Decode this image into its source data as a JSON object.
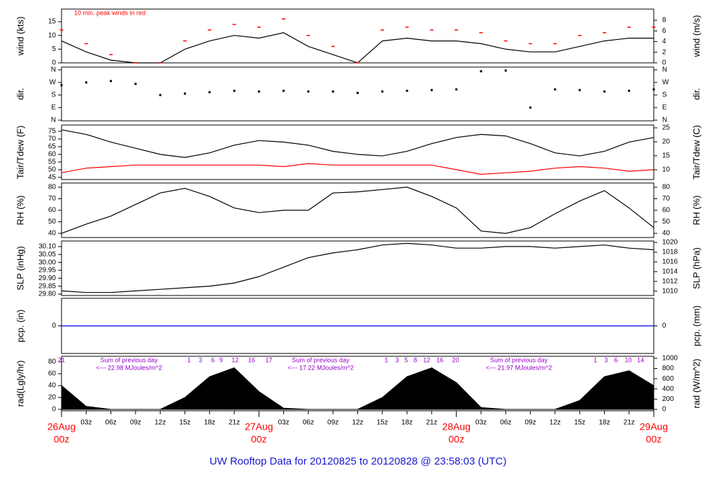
{
  "page_title": "UW Rooftop Data for 20120825  to  20120828 @ 23:58:03  (UTC)",
  "x_axis": {
    "xlim": [
      0,
      72
    ],
    "xticks": [
      {
        "value": 3,
        "label": "03z"
      },
      {
        "value": 6,
        "label": "06z"
      },
      {
        "value": 9,
        "label": "09z"
      },
      {
        "value": 12,
        "label": "12z"
      },
      {
        "value": 15,
        "label": "15z"
      },
      {
        "value": 18,
        "label": "18z"
      },
      {
        "value": 21,
        "label": "21z"
      },
      {
        "value": 27,
        "label": "03z"
      },
      {
        "value": 30,
        "label": "06z"
      },
      {
        "value": 33,
        "label": "09z"
      },
      {
        "value": 36,
        "label": "12z"
      },
      {
        "value": 39,
        "label": "15z"
      },
      {
        "value": 42,
        "label": "18z"
      },
      {
        "value": 45,
        "label": "21z"
      },
      {
        "value": 51,
        "label": "03z"
      },
      {
        "value": 54,
        "label": "06z"
      },
      {
        "value": 57,
        "label": "09z"
      },
      {
        "value": 60,
        "label": "12z"
      },
      {
        "value": 63,
        "label": "15z"
      },
      {
        "value": 66,
        "label": "18z"
      },
      {
        "value": 69,
        "label": "21z"
      }
    ],
    "major_ticks": [
      {
        "value": 0,
        "label": "26Aug",
        "sublabel": "00z"
      },
      {
        "value": 24,
        "label": "27Aug",
        "sublabel": "00z"
      },
      {
        "value": 48,
        "label": "28Aug",
        "sublabel": "00z"
      },
      {
        "value": 72,
        "label": "29Aug",
        "sublabel": "00z"
      }
    ],
    "major_color": "#ff0000"
  },
  "chart_data": [
    {
      "type": "line",
      "ylabel": "wind (kts)",
      "y2label": "wind (m/s)",
      "annotation": "10 min. peak winds in red",
      "annotation_color": "#ff0000",
      "ylim": [
        0,
        19.6
      ],
      "yticks": [
        0,
        5,
        10,
        15
      ],
      "y2lim": [
        0,
        10.1
      ],
      "y2ticks": [
        0,
        2,
        4,
        6,
        8
      ],
      "x": [
        0,
        3,
        6,
        9,
        12,
        15,
        18,
        21,
        24,
        27,
        30,
        33,
        36,
        39,
        42,
        45,
        48,
        51,
        54,
        57,
        60,
        63,
        66,
        69,
        72
      ],
      "series": [
        {
          "name": "wind",
          "color": "#000000",
          "mode": "line",
          "values": [
            8,
            4,
            1,
            0,
            0,
            5,
            8,
            10,
            9,
            11,
            6,
            3,
            0,
            8,
            9,
            8,
            8,
            7,
            5,
            4,
            4,
            6,
            8,
            9,
            9
          ]
        },
        {
          "name": "peak",
          "color": "#ff0000",
          "mode": "markers",
          "values": [
            12,
            7,
            3,
            0,
            0,
            8,
            12,
            14,
            13,
            16,
            10,
            6,
            0,
            12,
            13,
            12,
            12,
            11,
            8,
            7,
            7,
            10,
            11,
            13,
            13
          ]
        }
      ]
    },
    {
      "type": "scatter",
      "ylabel": "dir.",
      "y2label": "dir.",
      "ylim": [
        -5,
        380
      ],
      "yticks": [
        {
          "value": 0,
          "label": "N"
        },
        {
          "value": 90,
          "label": "E"
        },
        {
          "value": 180,
          "label": "S"
        },
        {
          "value": 270,
          "label": "W"
        },
        {
          "value": 360,
          "label": "N"
        }
      ],
      "y2lim": [
        -5,
        380
      ],
      "y2ticks": [
        {
          "value": 0,
          "label": "N"
        },
        {
          "value": 90,
          "label": "E"
        },
        {
          "value": 180,
          "label": "S"
        },
        {
          "value": 270,
          "label": "W"
        },
        {
          "value": 360,
          "label": "N"
        }
      ],
      "x": [
        0,
        3,
        6,
        9,
        12,
        15,
        18,
        21,
        24,
        27,
        30,
        33,
        36,
        39,
        42,
        45,
        48,
        51,
        54,
        57,
        60,
        63,
        66,
        69,
        72
      ],
      "series": [
        {
          "name": "dir",
          "color": "#000000",
          "values": [
            250,
            270,
            280,
            260,
            180,
            190,
            200,
            210,
            205,
            210,
            205,
            205,
            195,
            205,
            210,
            215,
            220,
            350,
            355,
            90,
            220,
            215,
            205,
            210,
            220
          ]
        }
      ]
    },
    {
      "type": "line",
      "ylabel": "Tair/Tdew (F)",
      "y2label": "Tair/Tdew (C)",
      "ylim": [
        43.6,
        79.1
      ],
      "yticks": [
        45,
        50,
        55,
        60,
        65,
        70,
        75
      ],
      "y2lim": [
        6.5,
        26
      ],
      "y2ticks": [
        10,
        15,
        20,
        25
      ],
      "x": [
        0,
        3,
        6,
        9,
        12,
        15,
        18,
        21,
        24,
        27,
        30,
        33,
        36,
        39,
        42,
        45,
        48,
        51,
        54,
        57,
        60,
        63,
        66,
        69,
        72
      ],
      "series": [
        {
          "name": "Tair",
          "color": "#000000",
          "mode": "line",
          "values": [
            76,
            73,
            68,
            64,
            60,
            58,
            61,
            66,
            69,
            68,
            66,
            62,
            60,
            59,
            62,
            67,
            71,
            73,
            72,
            67,
            61,
            59,
            62,
            68,
            71
          ]
        },
        {
          "name": "Tdew",
          "color": "#ff0000",
          "mode": "line",
          "values": [
            48,
            51,
            52,
            53,
            53,
            53,
            53,
            53,
            53,
            52,
            54,
            53,
            53,
            53,
            53,
            53,
            50,
            47,
            48,
            49,
            51,
            52,
            51,
            49,
            50
          ]
        }
      ]
    },
    {
      "type": "line",
      "ylabel": "RH (%)",
      "y2label": "RH (%)",
      "ylim": [
        36.4,
        83.6
      ],
      "yticks": [
        40,
        50,
        60,
        70,
        80
      ],
      "y2lim": [
        36.4,
        83.6
      ],
      "y2ticks": [
        40,
        50,
        60,
        70,
        80
      ],
      "x": [
        0,
        3,
        6,
        9,
        12,
        15,
        18,
        21,
        24,
        27,
        30,
        33,
        36,
        39,
        42,
        45,
        48,
        51,
        54,
        57,
        60,
        63,
        66,
        69,
        72
      ],
      "series": [
        {
          "name": "RH",
          "color": "#000000",
          "mode": "line",
          "values": [
            40,
            48,
            55,
            65,
            75,
            79,
            72,
            62,
            58,
            60,
            60,
            75,
            76,
            78,
            80,
            72,
            62,
            42,
            40,
            45,
            57,
            68,
            77,
            62,
            45
          ]
        }
      ]
    },
    {
      "type": "line",
      "ylabel": "SLP (inHg)",
      "y2label": "SLP (hPa)",
      "ylim": [
        29.791,
        30.135
      ],
      "yticks": [
        {
          "value": 29.8,
          "label": "29.80"
        },
        {
          "value": 29.85,
          "label": "29.85"
        },
        {
          "value": 29.9,
          "label": "29.90"
        },
        {
          "value": 29.95,
          "label": "29.95"
        },
        {
          "value": 30,
          "label": "30.00"
        },
        {
          "value": 30.05,
          "label": "30.05"
        },
        {
          "value": 30.1,
          "label": "30.10"
        }
      ],
      "y2lim": [
        1009.1,
        1020.3
      ],
      "y2ticks": [
        1010,
        1012,
        1014,
        1016,
        1018,
        1020
      ],
      "x": [
        0,
        3,
        6,
        9,
        12,
        15,
        18,
        21,
        24,
        27,
        30,
        33,
        36,
        39,
        42,
        45,
        48,
        51,
        54,
        57,
        60,
        63,
        66,
        69,
        72
      ],
      "series": [
        {
          "name": "SLP",
          "color": "#000000",
          "mode": "line",
          "values": [
            29.82,
            29.81,
            29.81,
            29.82,
            29.83,
            29.84,
            29.85,
            29.87,
            29.91,
            29.97,
            30.03,
            30.06,
            30.08,
            30.11,
            30.12,
            30.11,
            30.09,
            30.09,
            30.1,
            30.1,
            30.09,
            30.1,
            30.11,
            30.09,
            30.08
          ]
        }
      ]
    },
    {
      "type": "line",
      "ylabel": "pcp. (in)",
      "y2label": "pcp. (mm)",
      "ylim": [
        -1,
        1
      ],
      "yticks": [
        0
      ],
      "y2lim": [
        -1,
        1
      ],
      "y2ticks": [
        0
      ],
      "x": [
        0,
        3,
        6,
        9,
        12,
        15,
        18,
        21,
        24,
        27,
        30,
        33,
        36,
        39,
        42,
        45,
        48,
        51,
        54,
        57,
        60,
        63,
        66,
        69,
        72
      ],
      "series": [
        {
          "name": "pcp",
          "color": "#0000ff",
          "mode": "line",
          "values": [
            0,
            0,
            0,
            0,
            0,
            0,
            0,
            0,
            0,
            0,
            0,
            0,
            0,
            0,
            0,
            0,
            0,
            0,
            0,
            0,
            0,
            0,
            0,
            0,
            0
          ]
        }
      ]
    },
    {
      "type": "area",
      "ylabel": "rad(Lgly/hr)",
      "y2label": "rad (W/m^2)",
      "annotation_color": "#9900cc",
      "ylim": [
        -2.4,
        89.4
      ],
      "yticks": [
        0,
        20,
        40,
        60,
        80
      ],
      "y2lim": [
        -28,
        1040
      ],
      "y2ticks": [
        0,
        200,
        400,
        600,
        800,
        1000
      ],
      "x": [
        0,
        3,
        6,
        9,
        12,
        15,
        18,
        21,
        24,
        27,
        30,
        33,
        36,
        39,
        42,
        45,
        48,
        51,
        54,
        57,
        60,
        63,
        66,
        69,
        72
      ],
      "series": [
        {
          "name": "rad",
          "color": "#000000",
          "values": [
            40,
            5,
            0,
            0,
            0,
            20,
            55,
            70,
            30,
            2,
            0,
            0,
            0,
            20,
            55,
            70,
            45,
            3,
            0,
            0,
            0,
            15,
            55,
            65,
            40
          ]
        }
      ],
      "daily_sums": [
        {
          "x": 8.2,
          "heading": "Sum of previous day",
          "text": "<--- 22.98 MJoules/m^2"
        },
        {
          "x": 31.5,
          "heading": "Sum of previous day",
          "text": "<--- 17.22 MJoules/m^2"
        },
        {
          "x": 55.6,
          "heading": "Sum of previous day",
          "text": "<--- 21.97 MJoules/m^2"
        }
      ],
      "hour_labels": [
        {
          "x": 0,
          "label": "21"
        },
        {
          "x": 15.5,
          "label": "1"
        },
        {
          "x": 16.9,
          "label": "3"
        },
        {
          "x": 18.4,
          "label": "6"
        },
        {
          "x": 19.4,
          "label": "9"
        },
        {
          "x": 21.1,
          "label": "12"
        },
        {
          "x": 23.1,
          "label": "16"
        },
        {
          "x": 25.2,
          "label": "17"
        },
        {
          "x": 39.5,
          "label": "1"
        },
        {
          "x": 40.8,
          "label": "3"
        },
        {
          "x": 41.9,
          "label": "5"
        },
        {
          "x": 43,
          "label": "8"
        },
        {
          "x": 44.4,
          "label": "12"
        },
        {
          "x": 46,
          "label": "16"
        },
        {
          "x": 47.9,
          "label": "20"
        },
        {
          "x": 64.9,
          "label": "1"
        },
        {
          "x": 66.2,
          "label": "3"
        },
        {
          "x": 67.4,
          "label": "6"
        },
        {
          "x": 68.9,
          "label": "10"
        },
        {
          "x": 70.4,
          "label": "14"
        }
      ]
    }
  ]
}
